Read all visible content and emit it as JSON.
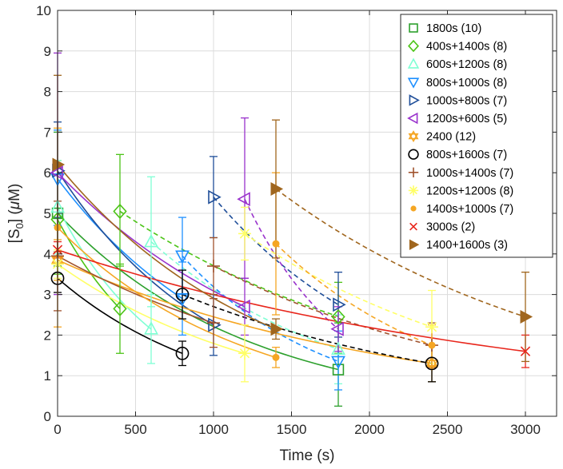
{
  "chart_data": {
    "type": "scatter",
    "title": "",
    "xlabel": "Time (s)",
    "ylabel_parts": {
      "base": "[S",
      "sub": "0",
      "end": "] (",
      "mu": "μ",
      "unit": "M)"
    },
    "xlim": [
      0,
      3200
    ],
    "ylim": [
      0,
      10
    ],
    "xticks": [
      0,
      500,
      1000,
      1500,
      2000,
      2500,
      3000
    ],
    "yticks": [
      0,
      1,
      2,
      3,
      4,
      5,
      6,
      7,
      8,
      9,
      10
    ],
    "grid": true,
    "legend_location": "top-right",
    "series": [
      {
        "name": "1800s (10)",
        "marker": "square",
        "color": "#2ca02c",
        "points": [
          {
            "x": 0,
            "y": 5.0,
            "lo": 3.7,
            "hi": 7.0
          },
          {
            "x": 1800,
            "y": 1.15,
            "lo": 0.25,
            "hi": 2.3
          }
        ],
        "fits": [
          {
            "style": "solid",
            "A": 5.0,
            "k": 0.000816,
            "t0": 0,
            "x0": 0,
            "x1": 1800
          }
        ]
      },
      {
        "name": "400s+1400s (8)",
        "marker": "diamond",
        "color": "#4cc417",
        "points": [
          {
            "x": 0,
            "y": 4.85,
            "lo": 3.5,
            "hi": 6.3
          },
          {
            "x": 400,
            "y": 2.65,
            "lo": 1.55,
            "hi": 3.75
          },
          {
            "x": 400,
            "y": 5.05,
            "lo": 3.7,
            "hi": 6.45
          },
          {
            "x": 1800,
            "y": 2.45,
            "lo": 1.55,
            "hi": 3.3
          }
        ],
        "fits": [
          {
            "style": "solid",
            "A": 4.85,
            "k": 0.00151,
            "t0": 0,
            "x0": 0,
            "x1": 400
          },
          {
            "style": "dashed",
            "A": 5.05,
            "k": 0.000514,
            "t0": 400,
            "x0": 400,
            "x1": 1800
          }
        ]
      },
      {
        "name": "600s+1200s (8)",
        "marker": "triangle-up",
        "color": "#7fffd4",
        "points": [
          {
            "x": 0,
            "y": 5.15,
            "lo": 4.0,
            "hi": 6.3
          },
          {
            "x": 600,
            "y": 2.15,
            "lo": 1.3,
            "hi": 3.0
          },
          {
            "x": 600,
            "y": 4.3,
            "lo": 2.7,
            "hi": 5.9
          },
          {
            "x": 1800,
            "y": 1.65,
            "lo": 0.8,
            "hi": 2.5
          }
        ],
        "fits": [
          {
            "style": "solid",
            "A": 5.15,
            "k": 0.00146,
            "t0": 0,
            "x0": 0,
            "x1": 600
          },
          {
            "style": "dashed",
            "A": 4.3,
            "k": 0.000797,
            "t0": 600,
            "x0": 600,
            "x1": 1800
          }
        ]
      },
      {
        "name": "800s+1000s (8)",
        "marker": "triangle-down",
        "color": "#1e90ff",
        "points": [
          {
            "x": 0,
            "y": 5.85,
            "lo": 4.7,
            "hi": 7.05
          },
          {
            "x": 800,
            "y": 2.9,
            "lo": 2.0,
            "hi": 3.8
          },
          {
            "x": 800,
            "y": 3.95,
            "lo": 3.0,
            "hi": 4.9
          },
          {
            "x": 1800,
            "y": 1.35,
            "lo": 0.65,
            "hi": 2.1
          }
        ],
        "fits": [
          {
            "style": "solid",
            "A": 5.85,
            "k": 0.000877,
            "t0": 0,
            "x0": 0,
            "x1": 800
          },
          {
            "style": "dashed",
            "A": 3.95,
            "k": 0.00107,
            "t0": 800,
            "x0": 800,
            "x1": 1800
          }
        ]
      },
      {
        "name": "1000s+800s (7)",
        "marker": "triangle-right",
        "color": "#1f4e99",
        "points": [
          {
            "x": 0,
            "y": 6.05,
            "lo": 4.9,
            "hi": 7.25
          },
          {
            "x": 1000,
            "y": 2.25,
            "lo": 1.5,
            "hi": 3.0
          },
          {
            "x": 1000,
            "y": 5.4,
            "lo": 4.4,
            "hi": 6.4
          },
          {
            "x": 1800,
            "y": 2.75,
            "lo": 1.95,
            "hi": 3.55
          }
        ],
        "fits": [
          {
            "style": "solid",
            "A": 6.05,
            "k": 0.000989,
            "t0": 0,
            "x0": 0,
            "x1": 1000
          },
          {
            "style": "dashed",
            "A": 5.4,
            "k": 0.000844,
            "t0": 1000,
            "x0": 1000,
            "x1": 1800
          }
        ]
      },
      {
        "name": "1200s+600s (5)",
        "marker": "triangle-left",
        "color": "#9932cc",
        "points": [
          {
            "x": 0,
            "y": 6.0,
            "lo": 3.0,
            "hi": 8.95
          },
          {
            "x": 1200,
            "y": 2.7,
            "lo": 2.0,
            "hi": 3.4
          },
          {
            "x": 1200,
            "y": 5.35,
            "lo": 3.4,
            "hi": 7.35
          },
          {
            "x": 1800,
            "y": 2.15,
            "lo": 1.6,
            "hi": 2.7
          }
        ],
        "fits": [
          {
            "style": "solid",
            "A": 6.0,
            "k": 0.000665,
            "t0": 0,
            "x0": 0,
            "x1": 1200
          },
          {
            "style": "dashed",
            "A": 5.35,
            "k": 0.00152,
            "t0": 1200,
            "x0": 1200,
            "x1": 1800
          }
        ]
      },
      {
        "name": "2400 (12)",
        "marker": "hexagram",
        "color": "#f5a623",
        "points": [
          {
            "x": 0,
            "y": 3.85,
            "lo": 3.35,
            "hi": 4.35
          },
          {
            "x": 2400,
            "y": 1.3,
            "lo": 0.85,
            "hi": 1.75
          }
        ],
        "fits": [
          {
            "style": "solid",
            "A": 3.85,
            "k": 0.000452,
            "t0": 0,
            "x0": 0,
            "x1": 2400
          }
        ]
      },
      {
        "name": "800s+1600s (7)",
        "marker": "circle",
        "color": "#000000",
        "points": [
          {
            "x": 0,
            "y": 3.4,
            "lo": 3.05,
            "hi": 3.75
          },
          {
            "x": 800,
            "y": 1.55,
            "lo": 1.25,
            "hi": 1.85
          },
          {
            "x": 800,
            "y": 3.0,
            "lo": 2.4,
            "hi": 3.6
          },
          {
            "x": 2400,
            "y": 1.3,
            "lo": 0.85,
            "hi": 1.75
          }
        ],
        "fits": [
          {
            "style": "solid",
            "A": 3.4,
            "k": 0.000982,
            "t0": 0,
            "x0": 0,
            "x1": 800
          },
          {
            "style": "dashed",
            "A": 3.0,
            "k": 0.000523,
            "t0": 800,
            "x0": 800,
            "x1": 2400
          }
        ]
      },
      {
        "name": "1000s+1400s (7)",
        "marker": "plus",
        "color": "#a0522d",
        "points": [
          {
            "x": 0,
            "y": 3.95,
            "lo": 2.6,
            "hi": 5.3
          },
          {
            "x": 1000,
            "y": 2.3,
            "lo": 1.7,
            "hi": 2.9
          },
          {
            "x": 1000,
            "y": 3.7,
            "lo": 3.0,
            "hi": 4.4
          },
          {
            "x": 2400,
            "y": 1.75,
            "lo": 1.2,
            "hi": 2.3
          }
        ],
        "fits": [
          {
            "style": "solid",
            "A": 3.95,
            "k": 0.000541,
            "t0": 0,
            "x0": 0,
            "x1": 1000
          },
          {
            "style": "dashed",
            "A": 3.7,
            "k": 0.000535,
            "t0": 1000,
            "x0": 1000,
            "x1": 2400
          }
        ]
      },
      {
        "name": "1200s+1200s (8)",
        "marker": "asterisk",
        "color": "#ffff66",
        "points": [
          {
            "x": 0,
            "y": 3.75,
            "lo": 3.4,
            "hi": 4.1
          },
          {
            "x": 1200,
            "y": 1.55,
            "lo": 0.85,
            "hi": 2.25
          },
          {
            "x": 1200,
            "y": 4.5,
            "lo": 3.85,
            "hi": 5.15
          },
          {
            "x": 2400,
            "y": 2.2,
            "lo": 1.3,
            "hi": 3.1
          }
        ],
        "fits": [
          {
            "style": "solid",
            "A": 3.75,
            "k": 0.000737,
            "t0": 0,
            "x0": 0,
            "x1": 1200
          },
          {
            "style": "dashed",
            "A": 4.5,
            "k": 0.000596,
            "t0": 1200,
            "x0": 1200,
            "x1": 2400
          }
        ]
      },
      {
        "name": "1400s+1000s (7)",
        "marker": "dot",
        "color": "#f5a623",
        "points": [
          {
            "x": 0,
            "y": 4.65,
            "lo": 2.2,
            "hi": 7.1
          },
          {
            "x": 1400,
            "y": 1.45,
            "lo": 1.2,
            "hi": 1.7
          },
          {
            "x": 1400,
            "y": 4.25,
            "lo": 2.5,
            "hi": 6.0
          },
          {
            "x": 2400,
            "y": 1.75,
            "lo": 1.25,
            "hi": 2.25
          }
        ],
        "fits": [
          {
            "style": "solid",
            "A": 4.65,
            "k": 0.000833,
            "t0": 0,
            "x0": 0,
            "x1": 1400
          },
          {
            "style": "dashed",
            "A": 4.25,
            "k": 0.000888,
            "t0": 1400,
            "x0": 1400,
            "x1": 2400
          }
        ]
      },
      {
        "name": "3000s (2)",
        "marker": "cross",
        "color": "#e8261c",
        "points": [
          {
            "x": 0,
            "y": 4.1,
            "lo": 3.9,
            "hi": 4.3
          },
          {
            "x": 3000,
            "y": 1.6,
            "lo": 1.2,
            "hi": 2.0
          }
        ],
        "fits": [
          {
            "style": "solid",
            "A": 4.1,
            "k": 0.000314,
            "t0": 0,
            "x0": 0,
            "x1": 3000
          }
        ]
      },
      {
        "name": "1400+1600s (3)",
        "marker": "filled-triangle-right",
        "color": "#a0661e",
        "points": [
          {
            "x": 0,
            "y": 6.2,
            "lo": 4.05,
            "hi": 8.4
          },
          {
            "x": 1400,
            "y": 2.15,
            "lo": 1.9,
            "hi": 2.4
          },
          {
            "x": 1400,
            "y": 5.6,
            "lo": 3.9,
            "hi": 7.3
          },
          {
            "x": 3000,
            "y": 2.45,
            "lo": 1.35,
            "hi": 3.55
          }
        ],
        "fits": [
          {
            "style": "solid",
            "A": 6.2,
            "k": 0.000757,
            "t0": 0,
            "x0": 0,
            "x1": 1400
          },
          {
            "style": "dashed",
            "A": 5.6,
            "k": 0.000517,
            "t0": 1400,
            "x0": 1400,
            "x1": 3000
          }
        ]
      }
    ]
  }
}
